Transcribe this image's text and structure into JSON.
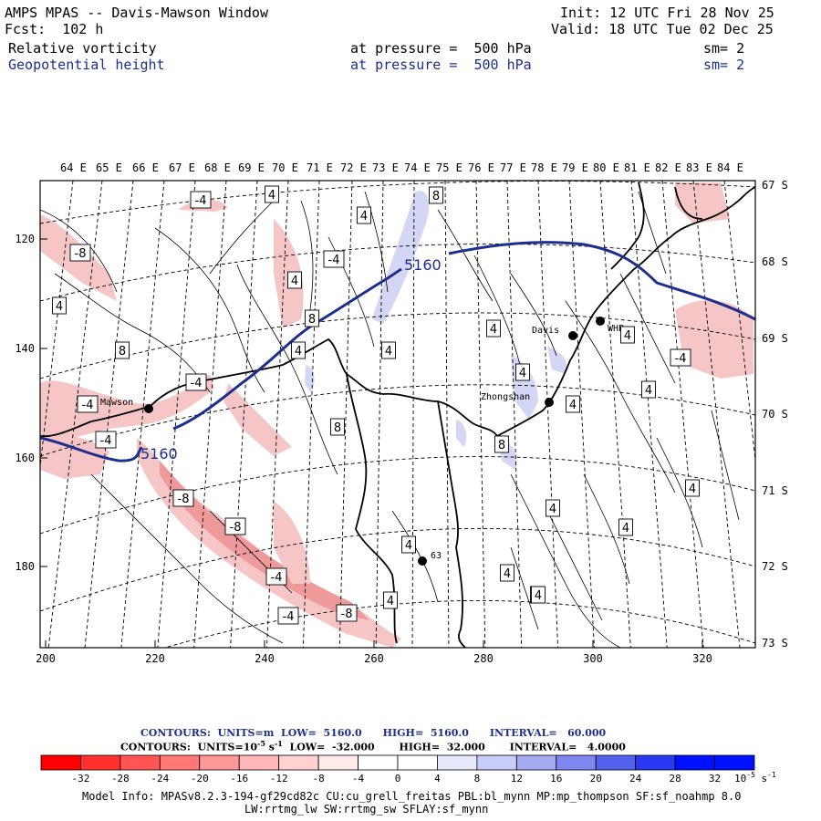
{
  "header": {
    "line1_left": "AMPS MPAS -- Davis-Mawson Window",
    "line1_right": "Init: 12 UTC Fri 28 Nov 25",
    "line2_left": "Fcst:  102 h",
    "line2_right": "Valid: 18 UTC Tue 02 Dec 25",
    "field1_name": "Relative vorticity",
    "field1_level": "at pressure =  500 hPa",
    "field1_smooth": "sm= 2",
    "field2_name": "Geopotential height",
    "field2_level": "at pressure =  500 hPa",
    "field2_smooth": "sm= 2"
  },
  "map": {
    "top_lon_labels": [
      "64 E",
      "65 E",
      "66 E",
      "67 E",
      "68 E",
      "69 E",
      "70 E",
      "71 E",
      "72 E",
      "73 E",
      "74 E",
      "75 E",
      "76 E",
      "77 E",
      "78 E",
      "79 E",
      "80 E",
      "81 E",
      "82 E",
      "83 E",
      "84 E"
    ],
    "right_lat_labels": [
      "67 S",
      "68 S",
      "69 S",
      "70 S",
      "71 S",
      "72 S",
      "73 S"
    ],
    "left_y_labels": [
      "120",
      "140",
      "160",
      "180"
    ],
    "bottom_x_labels": [
      "200",
      "220",
      "240",
      "260",
      "280",
      "300",
      "320"
    ],
    "stations": [
      {
        "name": "Mawson"
      },
      {
        "name": "Davis"
      },
      {
        "name": "WHP"
      },
      {
        "name": "Zhongshan"
      },
      {
        "name": "63"
      }
    ],
    "height_contour_labels": [
      "5160",
      "5160"
    ],
    "vort_labels": [
      "-4",
      "4",
      "8",
      "-8",
      "4",
      "-4",
      "4",
      "8",
      "4",
      "-4",
      "8",
      "4",
      "4",
      "4",
      "-4",
      "4",
      "4",
      "-4",
      "8",
      "4",
      "4",
      "8",
      "4",
      "4",
      "-4",
      "-8",
      "-8",
      "-4",
      "4",
      "4",
      "4",
      "-4",
      "-8",
      "4",
      "4",
      "4"
    ],
    "colors": {
      "height_contour": "#1c2f8f",
      "coast": "#000000",
      "vort_contour": "#000000",
      "neg_fill": "#f6c6c6",
      "neg_fill_strong": "#ef9a9a",
      "pos_fill": "#d3d6f5"
    }
  },
  "footer": {
    "contours1_text": "CONTOURS:  UNITS=m  LOW=  5160.0      HIGH=  5160.0      INTERVAL=   60.000",
    "contours2_prefix": "CONTOURS:  UNITS=10",
    "contours2_exp": "-5",
    "contours2_mid": " s",
    "contours2_exp2": "-1",
    "contours2_rest": "  LOW=  -32.000       HIGH=  32.000       INTERVAL=   4.0000",
    "colorbar_ticks": [
      "-32",
      "-28",
      "-24",
      "-20",
      "-16",
      "-12",
      "-8",
      "-4",
      "0",
      "4",
      "8",
      "12",
      "16",
      "20",
      "24",
      "28",
      "32"
    ],
    "colorbar_colors": [
      "#ff0000",
      "#ff2f2f",
      "#ff5555",
      "#ff7777",
      "#ff9898",
      "#ffb6b6",
      "#ffd1d1",
      "#ffeaea",
      "#ffffff",
      "#ffffff",
      "#e6e8fb",
      "#c8ccf7",
      "#a5abf3",
      "#7e86f0",
      "#5560ef",
      "#2a38f2",
      "#0011ff"
    ],
    "colorbar_units": "10",
    "colorbar_units_exp": "-5",
    "colorbar_units_s": " s",
    "colorbar_units_exp2": "-1",
    "model_info_line1": "Model Info: MPASv8.2.3-194-gf29cd82c CU:cu_grell_freitas PBL:bl_mynn MP:mp_thompson SF:sf_noahmp 8.0",
    "model_info_line2": "LW:rrtmg_lw SW:rrtmg_sw SFLAY:sf_mynn"
  }
}
